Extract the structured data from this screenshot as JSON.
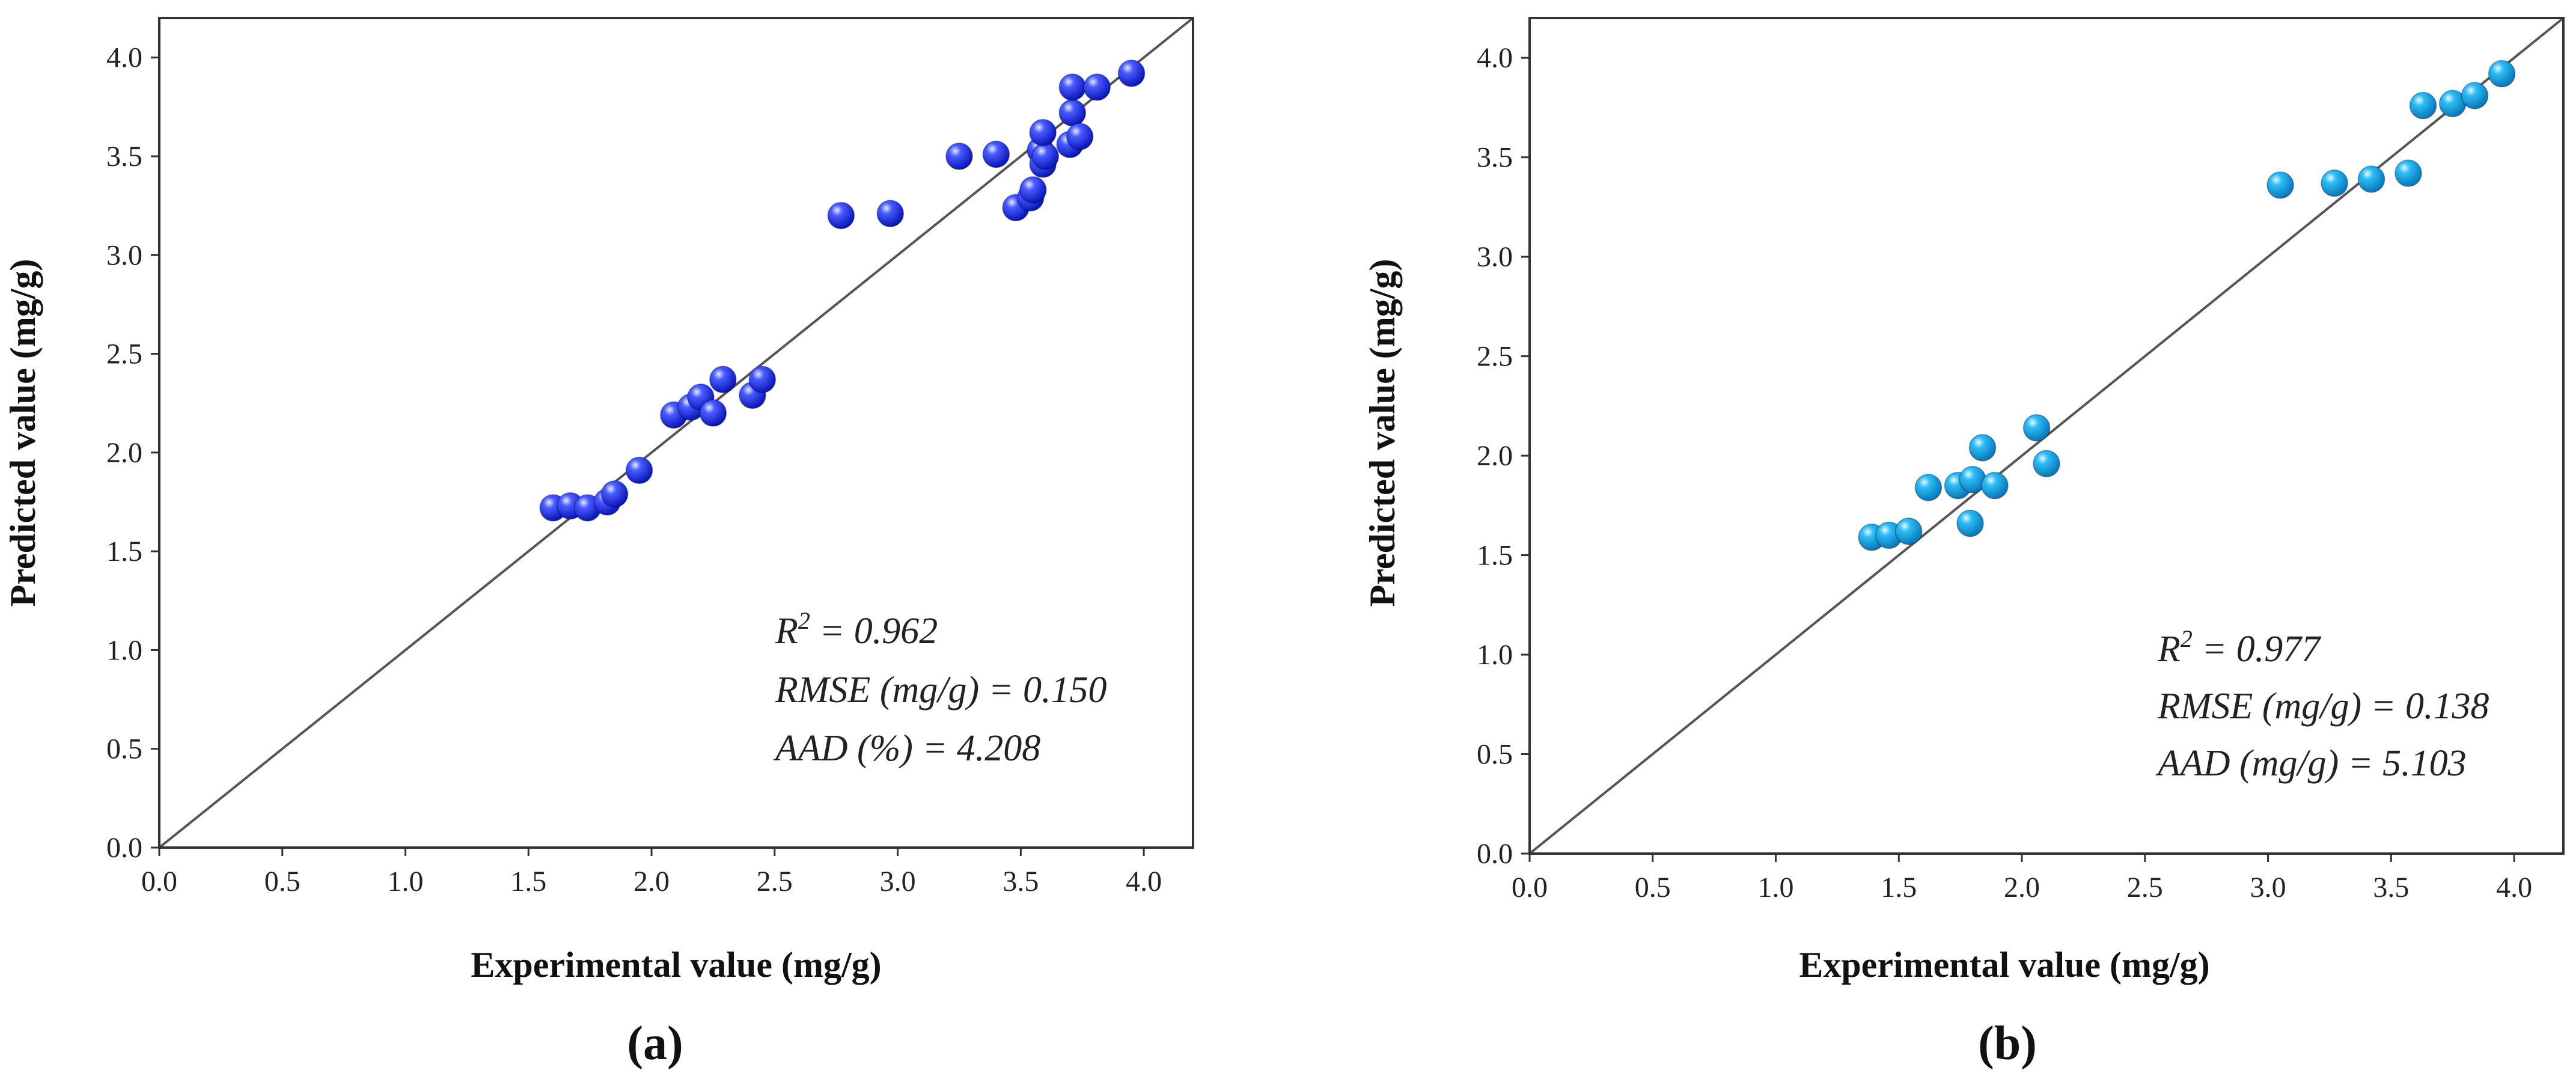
{
  "colors": {
    "panel_a_marker": "#1a2ef0",
    "panel_b_marker": "#12a8ee",
    "axis": "#333333",
    "diagonal": "#555555"
  },
  "chart_data": [
    {
      "type": "scatter",
      "panel_label": "(a)",
      "xlabel": "Experimental value (mg/g)",
      "ylabel": "Predicted value (mg/g)",
      "xlim": [
        0.0,
        4.2
      ],
      "ylim": [
        0.0,
        4.2
      ],
      "x_ticks": [
        "0.0",
        "0.5",
        "1.0",
        "1.5",
        "2.0",
        "2.5",
        "3.0",
        "3.5",
        "4.0"
      ],
      "y_ticks": [
        "0.0",
        "0.5",
        "1.0",
        "1.5",
        "2.0",
        "2.5",
        "3.0",
        "3.5",
        "4.0"
      ],
      "reference_line": "y = x",
      "annotation": {
        "r2_base": "R",
        "r2_sup": "2",
        "r2_value": " = 0.962",
        "rmse": "RMSE (mg/g) = 0.150",
        "aad": "AAD (%) = 4.208"
      },
      "points": [
        {
          "x": 1.6,
          "y": 1.72
        },
        {
          "x": 1.67,
          "y": 1.73
        },
        {
          "x": 1.74,
          "y": 1.72
        },
        {
          "x": 1.82,
          "y": 1.75
        },
        {
          "x": 1.85,
          "y": 1.79
        },
        {
          "x": 1.95,
          "y": 1.91
        },
        {
          "x": 2.09,
          "y": 2.19
        },
        {
          "x": 2.16,
          "y": 2.23
        },
        {
          "x": 2.2,
          "y": 2.28
        },
        {
          "x": 2.25,
          "y": 2.2
        },
        {
          "x": 2.29,
          "y": 2.37
        },
        {
          "x": 2.41,
          "y": 2.29
        },
        {
          "x": 2.45,
          "y": 2.37
        },
        {
          "x": 2.77,
          "y": 3.2
        },
        {
          "x": 2.97,
          "y": 3.21
        },
        {
          "x": 3.25,
          "y": 3.5
        },
        {
          "x": 3.4,
          "y": 3.51
        },
        {
          "x": 3.48,
          "y": 3.24
        },
        {
          "x": 3.54,
          "y": 3.29
        },
        {
          "x": 3.55,
          "y": 3.33
        },
        {
          "x": 3.58,
          "y": 3.53
        },
        {
          "x": 3.59,
          "y": 3.46
        },
        {
          "x": 3.6,
          "y": 3.5
        },
        {
          "x": 3.59,
          "y": 3.62
        },
        {
          "x": 3.7,
          "y": 3.56
        },
        {
          "x": 3.71,
          "y": 3.72
        },
        {
          "x": 3.71,
          "y": 3.85
        },
        {
          "x": 3.74,
          "y": 3.6
        },
        {
          "x": 3.81,
          "y": 3.85
        },
        {
          "x": 3.95,
          "y": 3.92
        }
      ]
    },
    {
      "type": "scatter",
      "panel_label": "(b)",
      "xlabel": "Experimental value (mg/g)",
      "ylabel": "Predicted value (mg/g)",
      "xlim": [
        0.0,
        4.2
      ],
      "ylim": [
        0.0,
        4.2
      ],
      "x_ticks": [
        "0.0",
        "0.5",
        "1.0",
        "1.5",
        "2.0",
        "2.5",
        "3.0",
        "3.5",
        "4.0"
      ],
      "y_ticks": [
        "0.0",
        "0.5",
        "1.0",
        "1.5",
        "2.0",
        "2.5",
        "3.0",
        "3.5",
        "4.0"
      ],
      "reference_line": "y = x",
      "annotation": {
        "r2_base": "R",
        "r2_sup": "2",
        "r2_value": " = 0.977",
        "rmse": "RMSE (mg/g) = 0.138",
        "aad": "AAD (mg/g) = 5.103"
      },
      "points": [
        {
          "x": 1.39,
          "y": 1.59
        },
        {
          "x": 1.46,
          "y": 1.6
        },
        {
          "x": 1.54,
          "y": 1.62
        },
        {
          "x": 1.62,
          "y": 1.84
        },
        {
          "x": 1.74,
          "y": 1.85
        },
        {
          "x": 1.79,
          "y": 1.66
        },
        {
          "x": 1.8,
          "y": 1.88
        },
        {
          "x": 1.84,
          "y": 2.04
        },
        {
          "x": 1.89,
          "y": 1.85
        },
        {
          "x": 2.06,
          "y": 2.14
        },
        {
          "x": 2.1,
          "y": 1.96
        },
        {
          "x": 3.05,
          "y": 3.36
        },
        {
          "x": 3.27,
          "y": 3.37
        },
        {
          "x": 3.42,
          "y": 3.39
        },
        {
          "x": 3.57,
          "y": 3.42
        },
        {
          "x": 3.63,
          "y": 3.76
        },
        {
          "x": 3.75,
          "y": 3.77
        },
        {
          "x": 3.84,
          "y": 3.81
        },
        {
          "x": 3.95,
          "y": 3.92
        }
      ]
    }
  ]
}
